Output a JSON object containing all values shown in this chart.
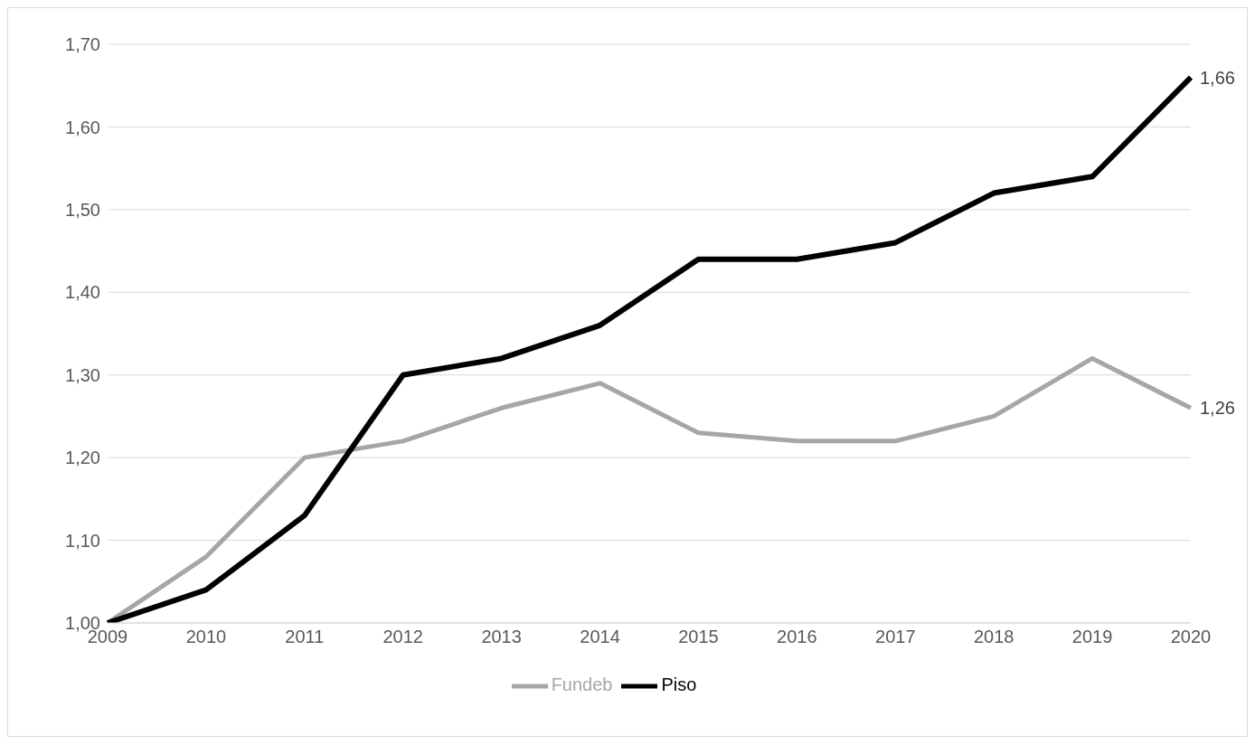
{
  "chart_data": {
    "type": "line",
    "categories": [
      "2009",
      "2010",
      "2011",
      "2012",
      "2013",
      "2014",
      "2015",
      "2016",
      "2017",
      "2018",
      "2019",
      "2020"
    ],
    "series": [
      {
        "name": "Fundeb",
        "color": "#a6a6a6",
        "values": [
          1.0,
          1.08,
          1.2,
          1.22,
          1.26,
          1.29,
          1.23,
          1.22,
          1.22,
          1.25,
          1.32,
          1.26
        ],
        "value_labels": [
          null,
          null,
          null,
          null,
          null,
          null,
          null,
          null,
          null,
          null,
          null,
          "1,26"
        ]
      },
      {
        "name": "Piso",
        "color": "#000000",
        "values": [
          1.0,
          1.04,
          1.13,
          1.3,
          1.32,
          1.36,
          1.44,
          1.44,
          1.46,
          1.52,
          1.54,
          1.66
        ],
        "value_labels": [
          null,
          null,
          null,
          null,
          null,
          null,
          null,
          null,
          null,
          null,
          null,
          "1,66"
        ]
      }
    ],
    "ylim": [
      1.0,
      1.7
    ],
    "yticks": [
      {
        "value": 1.0,
        "label": "1,00"
      },
      {
        "value": 1.1,
        "label": "1,10"
      },
      {
        "value": 1.2,
        "label": "1,20"
      },
      {
        "value": 1.3,
        "label": "1,30"
      },
      {
        "value": 1.4,
        "label": "1,40"
      },
      {
        "value": 1.5,
        "label": "1,50"
      },
      {
        "value": 1.6,
        "label": "1,60"
      },
      {
        "value": 1.7,
        "label": "1,70"
      }
    ],
    "grid": "y",
    "legend": "bottom",
    "marker": "none",
    "line_style": "solid"
  }
}
